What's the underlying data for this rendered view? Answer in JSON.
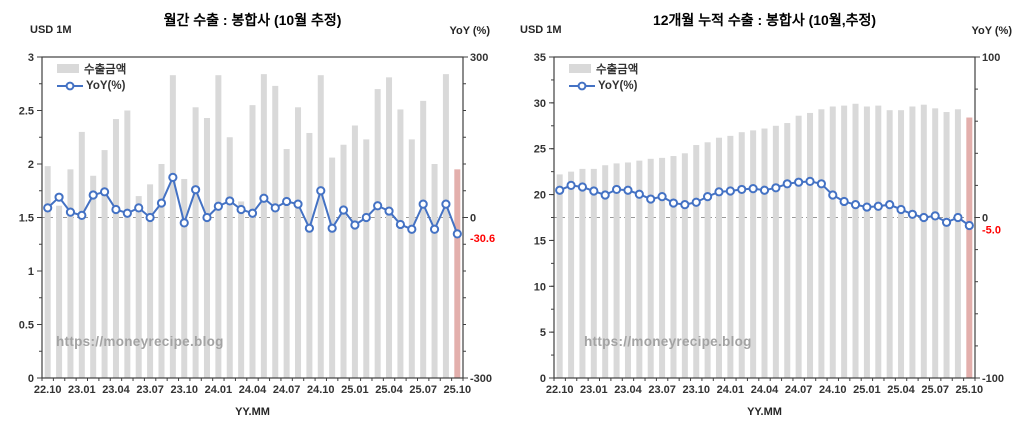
{
  "colors": {
    "bar": "#d9d9d9",
    "bar_estimate": "#e3afac",
    "line": "#4472c4",
    "marker_fill": "#ffffff",
    "grid_dash": "#999999",
    "plot_border": "#3f3f3f",
    "axis_text": "#333333",
    "red_label": "#ff0000",
    "watermark_gray": "#a3a3a3"
  },
  "chart_data": [
    {
      "type": "combo bar+line",
      "title": "월간 수출 : 봉합사 (10월 추정)",
      "xlabel": "YY.MM",
      "watermark": "https://moneyrecipe.blog",
      "x": [
        "22.10",
        "22.11",
        "22.12",
        "23.01",
        "23.02",
        "23.03",
        "23.04",
        "23.05",
        "23.06",
        "23.07",
        "23.08",
        "23.09",
        "23.10",
        "23.11",
        "23.12",
        "24.01",
        "24.02",
        "24.03",
        "24.04",
        "24.05",
        "24.06",
        "24.07",
        "24.08",
        "24.09",
        "24.10",
        "24.11",
        "24.12",
        "25.01",
        "25.02",
        "25.03",
        "25.04",
        "25.05",
        "25.06",
        "25.07",
        "25.08",
        "25.09",
        "25.10"
      ],
      "x_label_every": 3,
      "left_axis": {
        "label": "USD 1M",
        "min": 0,
        "max": 3,
        "ticks": [
          3,
          2.5,
          2,
          1.5,
          1,
          0.5,
          0
        ],
        "minor_step": 0.25
      },
      "right_axis": {
        "label": "YoY (%)",
        "min": -300,
        "max": 300,
        "ticks": [
          300,
          0,
          -300
        ],
        "minor_step": 50
      },
      "gridline_at_right_value": 0,
      "series": [
        {
          "name": "수출금액",
          "type": "bar",
          "axis": "left",
          "values": [
            1.98,
            1.61,
            1.95,
            2.3,
            1.89,
            2.13,
            2.42,
            2.5,
            1.7,
            1.81,
            2.0,
            2.83,
            1.86,
            2.53,
            2.43,
            2.83,
            2.25,
            1.65,
            2.55,
            2.84,
            2.73,
            2.14,
            2.53,
            2.29,
            2.83,
            2.06,
            2.18,
            2.36,
            2.23,
            2.7,
            2.81,
            2.51,
            2.23,
            2.59,
            2.0,
            2.84,
            1.95
          ]
        },
        {
          "name": "YoY(%)",
          "type": "line",
          "axis": "right",
          "values": [
            18,
            38,
            10,
            4,
            42,
            48,
            15,
            8,
            18,
            0,
            27,
            75,
            -10,
            52,
            0,
            21,
            31,
            15,
            8,
            36,
            18,
            30,
            25,
            -20,
            50,
            -20,
            14,
            -14,
            0,
            22,
            12,
            -13,
            -22,
            25,
            -22,
            25,
            -30.6
          ]
        }
      ],
      "annotations": {
        "last_value_label": "-30.6"
      }
    },
    {
      "type": "combo bar+line",
      "title": "12개월 누적 수출 : 봉합사 (10월,추정)",
      "xlabel": "YY.MM",
      "watermark": "https://moneyrecipe.blog",
      "x": [
        "22.10",
        "22.11",
        "22.12",
        "23.01",
        "23.02",
        "23.03",
        "23.04",
        "23.05",
        "23.06",
        "23.07",
        "23.08",
        "23.09",
        "23.10",
        "23.11",
        "23.12",
        "24.01",
        "24.02",
        "24.03",
        "24.04",
        "24.05",
        "24.06",
        "24.07",
        "24.08",
        "24.09",
        "24.10",
        "24.11",
        "24.12",
        "25.01",
        "25.02",
        "25.03",
        "25.04",
        "25.05",
        "25.06",
        "25.07",
        "25.08",
        "25.09",
        "25.10"
      ],
      "x_label_every": 3,
      "left_axis": {
        "label": "USD 1M",
        "min": 0,
        "max": 35,
        "ticks": [
          35,
          30,
          25,
          20,
          15,
          10,
          5,
          0
        ],
        "minor_step": 2.5
      },
      "right_axis": {
        "label": "YoY (%)",
        "min": -100,
        "max": 100,
        "ticks": [
          100,
          0,
          -100
        ],
        "minor_step": 20
      },
      "gridline_at_right_value": 0,
      "series": [
        {
          "name": "수출금액",
          "type": "bar",
          "axis": "left",
          "values": [
            22.2,
            22.5,
            22.8,
            22.8,
            23.2,
            23.4,
            23.5,
            23.7,
            23.9,
            24.0,
            24.2,
            24.5,
            25.4,
            25.7,
            26.2,
            26.4,
            26.8,
            27.0,
            27.2,
            27.5,
            27.8,
            28.6,
            28.9,
            29.3,
            29.6,
            29.7,
            29.9,
            29.6,
            29.7,
            29.2,
            29.2,
            29.6,
            29.8,
            29.4,
            29.0,
            29.3,
            28.4
          ]
        },
        {
          "name": "YoY(%)",
          "type": "line",
          "axis": "right",
          "values": [
            17,
            20,
            19,
            16.5,
            14,
            17.5,
            17,
            14.5,
            11.5,
            13,
            9,
            8,
            9.5,
            13,
            16,
            16.5,
            17.5,
            18,
            17,
            18.5,
            21,
            22,
            22.5,
            21,
            14,
            10,
            8,
            6.5,
            7,
            8,
            5,
            2,
            0,
            1,
            -3,
            0,
            -5.0
          ]
        }
      ],
      "annotations": {
        "last_value_label": "-5.0"
      }
    }
  ]
}
